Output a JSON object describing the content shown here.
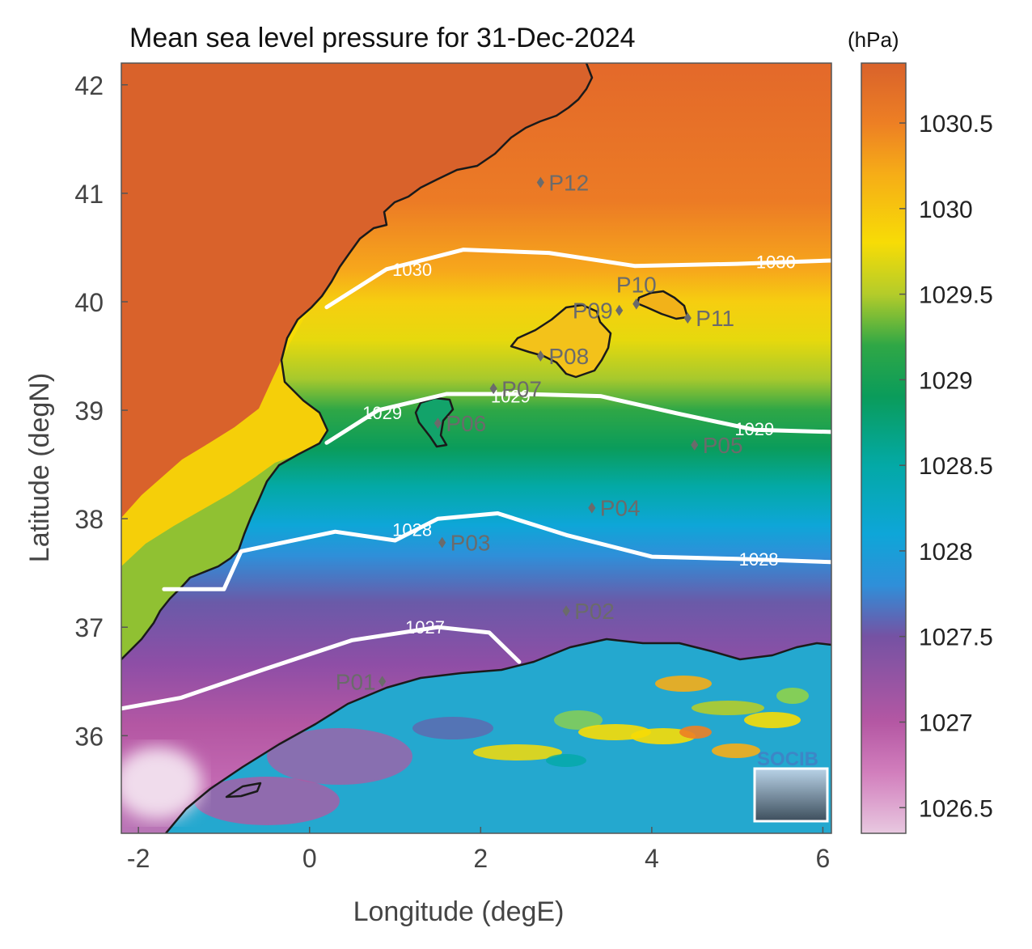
{
  "title": "Mean sea level pressure for 31-Dec-2024",
  "units": "(hPa)",
  "x_axis": {
    "label": "Longitude (degE)",
    "ticks": [
      "-2",
      "0",
      "2",
      "4",
      "6"
    ],
    "range": [
      -2.2,
      6.1
    ]
  },
  "y_axis": {
    "label": "Latitude (degN)",
    "ticks": [
      "42",
      "41",
      "40",
      "39",
      "38",
      "37",
      "36"
    ],
    "range": [
      35.1,
      42.2
    ]
  },
  "colorbar": {
    "ticks": [
      "1030.5",
      "1030",
      "1029.5",
      "1029",
      "1028.5",
      "1028",
      "1027.5",
      "1027",
      "1026.5"
    ],
    "range": [
      1026.35,
      1030.85
    ],
    "stops": [
      {
        "v": 1026.35,
        "c": "#e8c8e0"
      },
      {
        "v": 1026.7,
        "c": "#d27fbd"
      },
      {
        "v": 1027.0,
        "c": "#b457a3"
      },
      {
        "v": 1027.5,
        "c": "#7552a3"
      },
      {
        "v": 1027.8,
        "c": "#2f8fd9"
      },
      {
        "v": 1028.1,
        "c": "#0ea6d8"
      },
      {
        "v": 1028.5,
        "c": "#03a9a6"
      },
      {
        "v": 1028.9,
        "c": "#0a9c5b"
      },
      {
        "v": 1029.2,
        "c": "#2fa746"
      },
      {
        "v": 1029.5,
        "c": "#b4cc2a"
      },
      {
        "v": 1029.8,
        "c": "#f7dc06"
      },
      {
        "v": 1030.2,
        "c": "#f6ad17"
      },
      {
        "v": 1030.5,
        "c": "#ed7f24"
      },
      {
        "v": 1030.85,
        "c": "#d9622b"
      }
    ]
  },
  "contours": [
    {
      "label": "1030",
      "points": [
        [
          0.2,
          39.95
        ],
        [
          0.9,
          40.3
        ],
        [
          1.8,
          40.48
        ],
        [
          2.8,
          40.45
        ],
        [
          3.8,
          40.33
        ],
        [
          5.0,
          40.35
        ],
        [
          6.1,
          40.38
        ]
      ],
      "label_pos": [
        [
          1.2,
          40.3
        ],
        [
          5.45,
          40.37
        ]
      ]
    },
    {
      "label": "1029",
      "points": [
        [
          0.2,
          38.7
        ],
        [
          0.8,
          39.0
        ],
        [
          1.6,
          39.15
        ],
        [
          2.5,
          39.15
        ],
        [
          3.4,
          39.13
        ],
        [
          4.3,
          38.97
        ],
        [
          5.2,
          38.82
        ],
        [
          6.1,
          38.8
        ]
      ],
      "label_pos": [
        [
          0.85,
          38.98
        ],
        [
          2.35,
          39.13
        ],
        [
          5.2,
          38.83
        ]
      ]
    },
    {
      "label": "1028",
      "points": [
        [
          -1.7,
          37.35
        ],
        [
          -1.0,
          37.35
        ],
        [
          -0.8,
          37.7
        ],
        [
          0.3,
          37.88
        ],
        [
          1.0,
          37.8
        ],
        [
          1.5,
          38.0
        ],
        [
          2.2,
          38.05
        ],
        [
          3.0,
          37.85
        ],
        [
          4.0,
          37.65
        ],
        [
          5.0,
          37.63
        ],
        [
          6.1,
          37.6
        ]
      ],
      "label_pos": [
        [
          1.2,
          37.9
        ],
        [
          5.25,
          37.63
        ]
      ]
    },
    {
      "label": "1027",
      "points": [
        [
          -2.2,
          36.25
        ],
        [
          -1.5,
          36.35
        ],
        [
          -0.5,
          36.62
        ],
        [
          0.5,
          36.88
        ],
        [
          1.5,
          37.0
        ],
        [
          2.1,
          36.95
        ],
        [
          2.45,
          36.68
        ]
      ],
      "label_pos": [
        [
          1.35,
          37.0
        ]
      ]
    }
  ],
  "points": [
    {
      "name": "P01",
      "lon": 0.85,
      "lat": 36.5,
      "label_side": "left"
    },
    {
      "name": "P02",
      "lon": 3.0,
      "lat": 37.15,
      "label_side": "right"
    },
    {
      "name": "P03",
      "lon": 1.55,
      "lat": 37.78,
      "label_side": "right"
    },
    {
      "name": "P04",
      "lon": 3.3,
      "lat": 38.1,
      "label_side": "right"
    },
    {
      "name": "P05",
      "lon": 4.5,
      "lat": 38.68,
      "label_side": "right"
    },
    {
      "name": "P06",
      "lon": 1.5,
      "lat": 38.88,
      "label_side": "right"
    },
    {
      "name": "P07",
      "lon": 2.15,
      "lat": 39.2,
      "label_side": "right"
    },
    {
      "name": "P08",
      "lon": 2.7,
      "lat": 39.5,
      "label_side": "right"
    },
    {
      "name": "P09",
      "lon": 3.62,
      "lat": 39.92,
      "label_side": "left"
    },
    {
      "name": "P10",
      "lon": 3.82,
      "lat": 39.98,
      "label_side": "top"
    },
    {
      "name": "P11",
      "lon": 4.42,
      "lat": 39.85,
      "label_side": "right"
    },
    {
      "name": "P12",
      "lon": 2.7,
      "lat": 41.1,
      "label_side": "right"
    }
  ],
  "logo": {
    "text": "SOCIB"
  }
}
